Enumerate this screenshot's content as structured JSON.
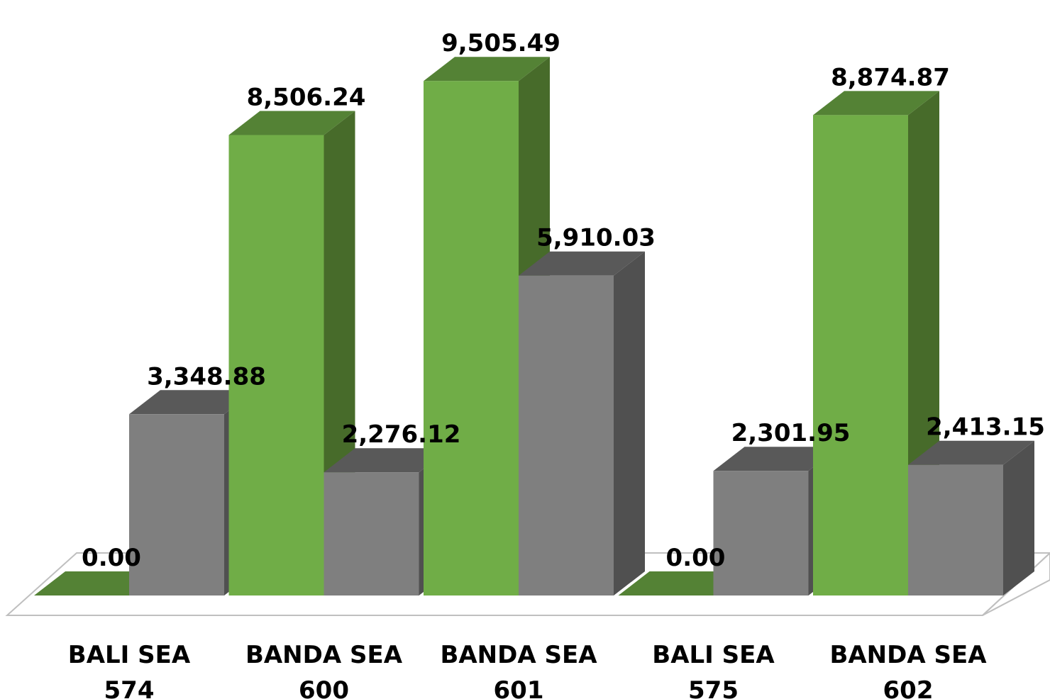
{
  "chart_data": {
    "type": "bar",
    "categories": [
      [
        "BALI SEA",
        "574"
      ],
      [
        "BANDA SEA",
        "600"
      ],
      [
        "BANDA SEA",
        "601"
      ],
      [
        "BALI SEA",
        "575"
      ],
      [
        "BANDA SEA",
        "602"
      ]
    ],
    "series": [
      {
        "values": [
          0,
          8506.24,
          9505.49,
          0,
          8874.87
        ],
        "labels": [
          "0.00",
          "8,506.24",
          "9,505.49",
          "0.00",
          "8,874.87"
        ]
      },
      {
        "values": [
          3348.88,
          2276.12,
          5910.03,
          2301.95,
          2413.15
        ],
        "labels": [
          "3,348.88",
          "2,276.12",
          "5,910.03",
          "2,301.95",
          "2,413.15"
        ]
      }
    ],
    "style": "3d-clustered-column",
    "colors": {
      "green_front": "#70AD47",
      "green_top": "#548235",
      "green_side": "#476B2A",
      "gray_front": "#7F7F7F",
      "gray_top": "#595959",
      "gray_side": "#505050",
      "floor_stroke": "#BFBFBF"
    },
    "ylim": [
      0,
      9600
    ],
    "grid": false,
    "legend": "none"
  }
}
